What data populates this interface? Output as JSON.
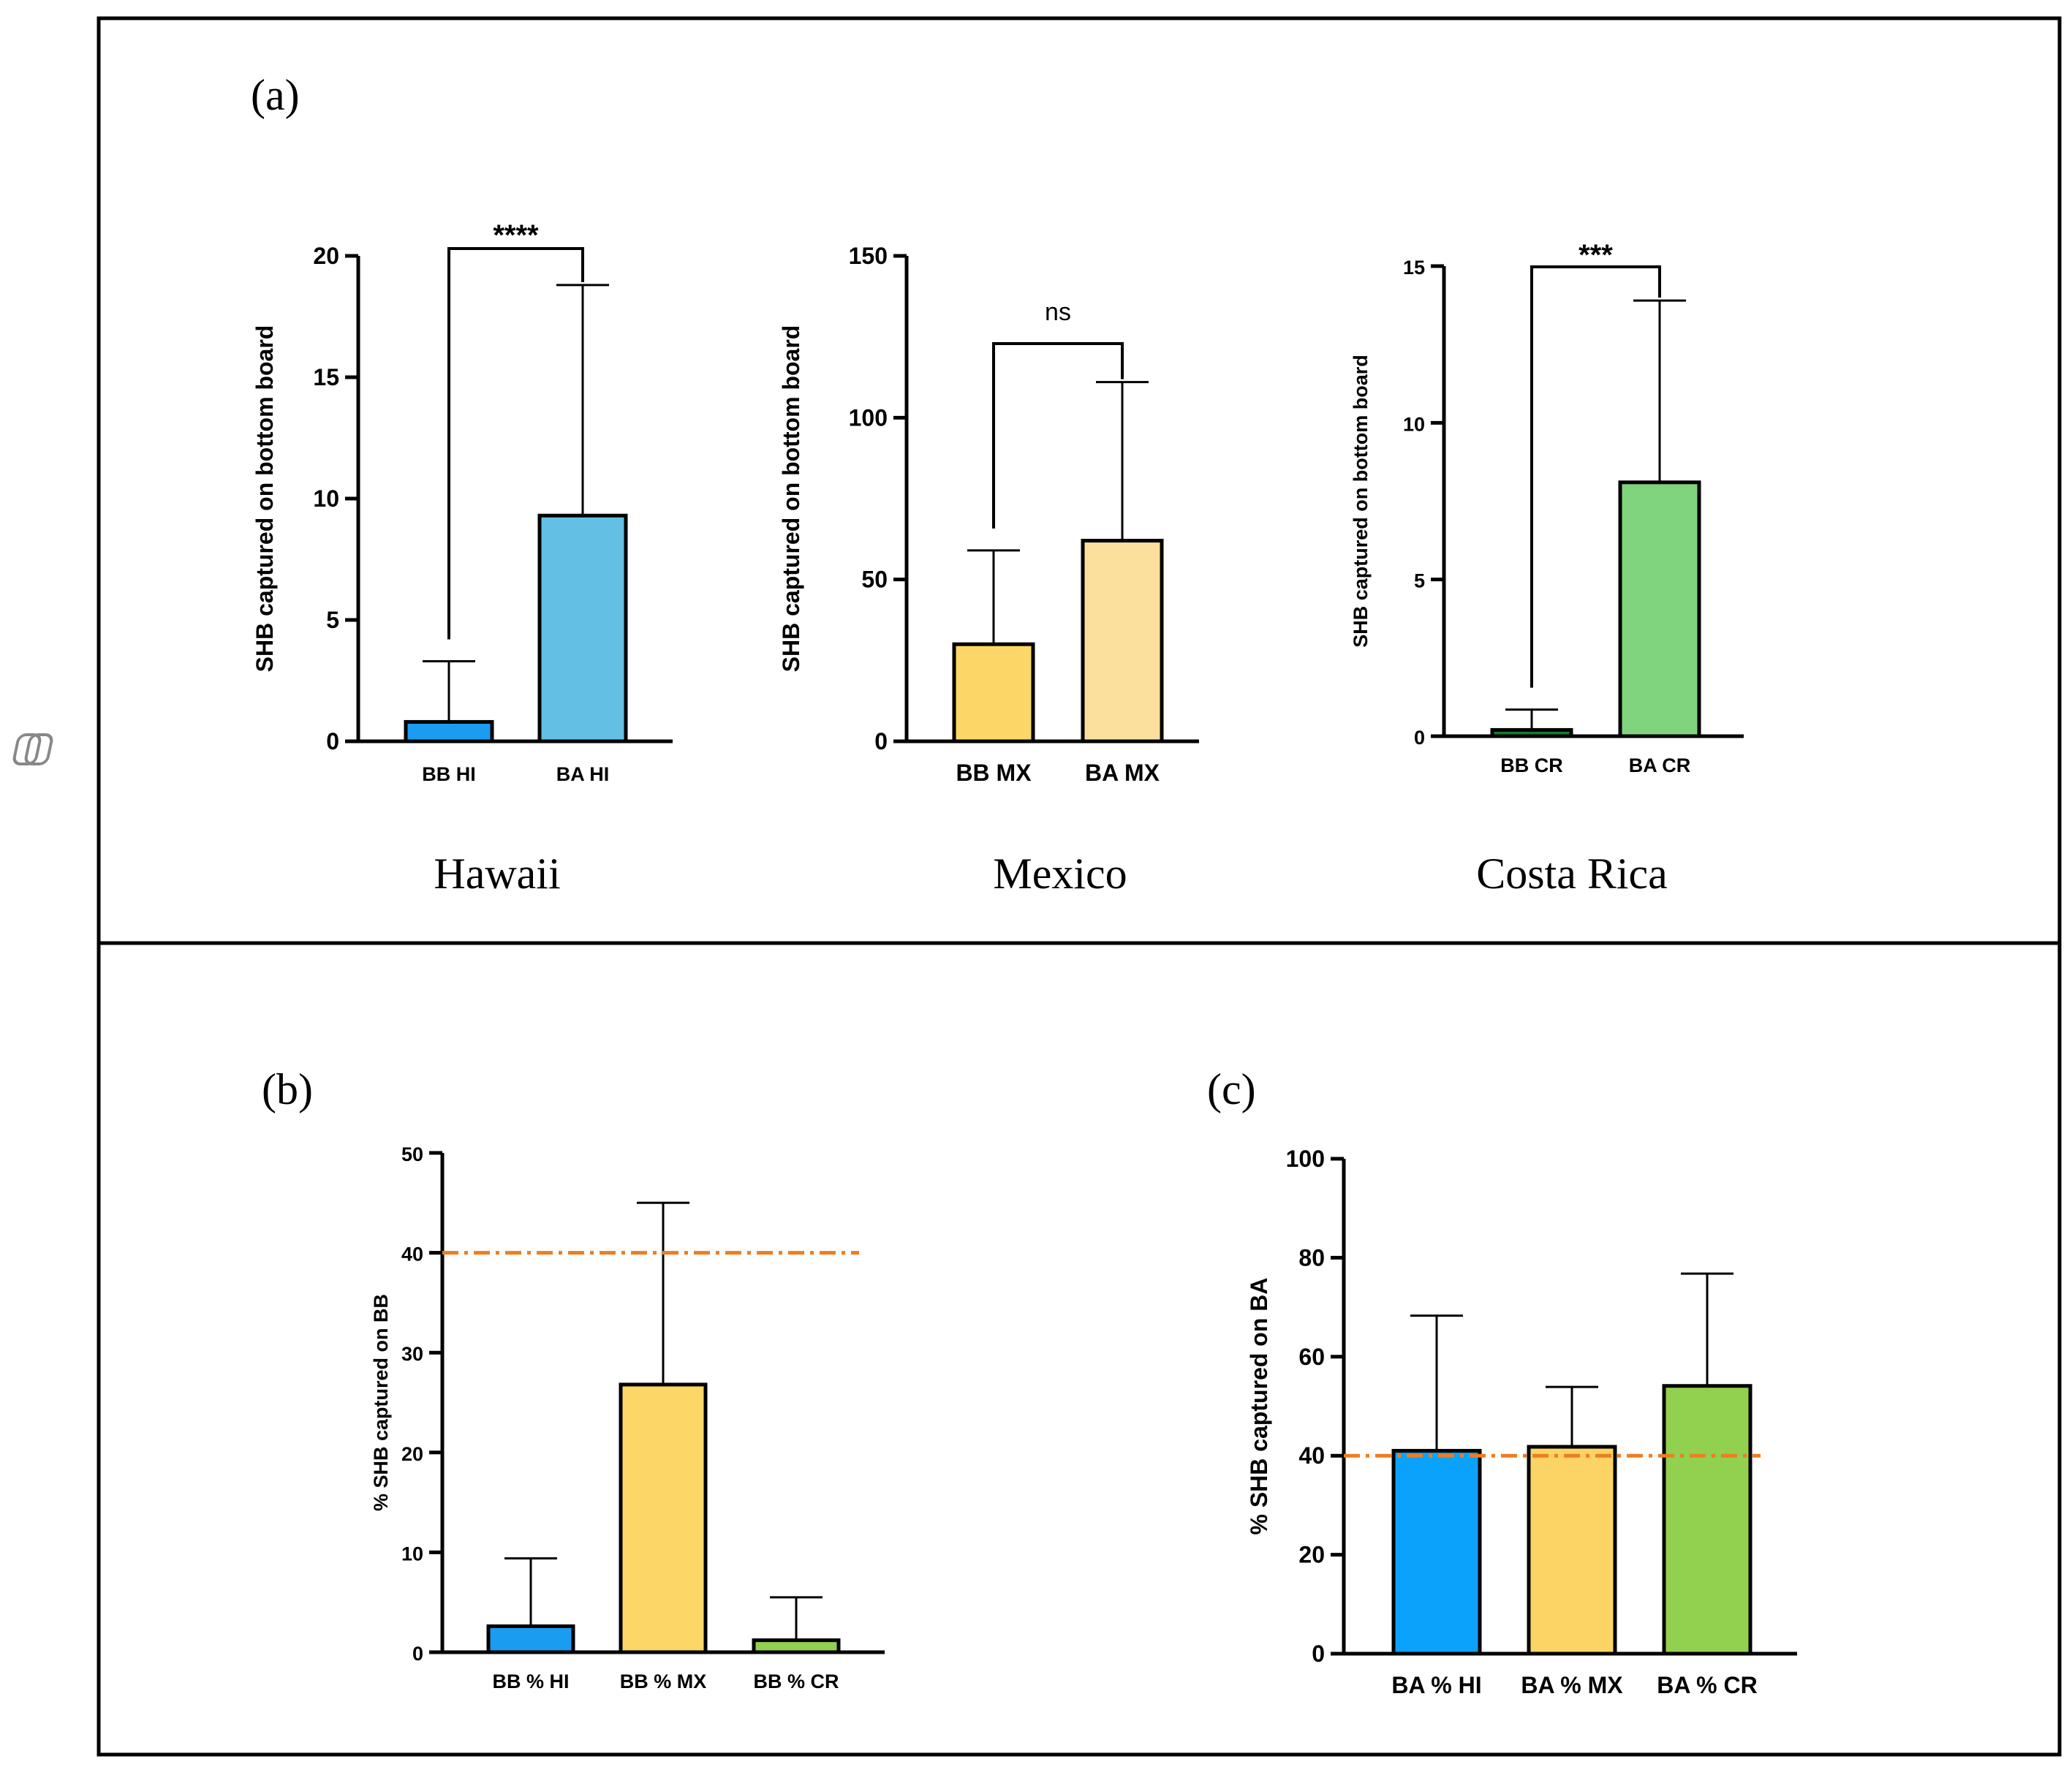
{
  "figure": {
    "panel_a_label": "(a)",
    "panel_b_label": "(b)",
    "panel_c_label": "(c)",
    "side_icon": "copilot-icon"
  },
  "colors": {
    "blue_dark": "#1a9cf0",
    "blue_light": "#63c0e4",
    "yellow_dark": "#fcd768",
    "yellow_light": "#fae09c",
    "green_dark": "#177a2c",
    "green_light": "#80d47e",
    "yellow_c": "#fcd466",
    "blue_c": "#0aa2fb",
    "green_c": "#92d050",
    "reference_line": "#f07d1f"
  },
  "chart_data": [
    {
      "id": "hawaii",
      "type": "bar",
      "region": "Hawaii",
      "categories": [
        "BB HI",
        "BA HI"
      ],
      "values": [
        0.8,
        9.3
      ],
      "error_upper": [
        3.3,
        18.8
      ],
      "colors": [
        "#1a9cf0",
        "#63c0e4"
      ],
      "ylabel": "SHB captured on bottom board",
      "ylim": [
        0,
        20
      ],
      "yticks": [
        0,
        5,
        10,
        15,
        20
      ],
      "significance": "****"
    },
    {
      "id": "mexico",
      "type": "bar",
      "region": "Mexico",
      "categories": [
        "BB MX",
        "BA MX"
      ],
      "values": [
        30,
        62
      ],
      "error_upper": [
        59,
        111
      ],
      "colors": [
        "#fcd768",
        "#fae09c"
      ],
      "ylabel": "SHB captured on bottom board",
      "ylim": [
        0,
        150
      ],
      "yticks": [
        0,
        50,
        100,
        150
      ],
      "significance": "ns"
    },
    {
      "id": "costa_rica",
      "type": "bar",
      "region": "Costa Rica",
      "categories": [
        "BB CR",
        "BA CR"
      ],
      "values": [
        0.2,
        8.1
      ],
      "error_upper": [
        0.85,
        13.9
      ],
      "colors": [
        "#177a2c",
        "#80d47e"
      ],
      "ylabel": "SHB captured on bottom board",
      "ylim": [
        0,
        15
      ],
      "yticks": [
        0,
        5,
        10,
        15
      ],
      "significance": "***"
    },
    {
      "id": "panel_b",
      "type": "bar",
      "categories": [
        "BB % HI",
        "BB % MX",
        "BB % CR"
      ],
      "values": [
        2.6,
        26.8,
        1.2
      ],
      "error_upper": [
        9.4,
        45,
        5.5
      ],
      "colors": [
        "#1a9cf0",
        "#fcd768",
        "#92d050"
      ],
      "ylabel": "% SHB captured on BB",
      "ylim": [
        0,
        50
      ],
      "yticks": [
        0,
        10,
        20,
        30,
        40,
        50
      ],
      "reference_line": 40
    },
    {
      "id": "panel_c",
      "type": "bar",
      "categories": [
        "BA % HI",
        "BA % MX",
        "BA % CR"
      ],
      "values": [
        41,
        41.8,
        54.1
      ],
      "error_upper": [
        68.3,
        53.9,
        76.8
      ],
      "colors": [
        "#0aa2fb",
        "#fcd466",
        "#92d050"
      ],
      "ylabel": "% SHB captured on BA",
      "ylim": [
        0,
        100
      ],
      "yticks": [
        0,
        20,
        40,
        60,
        80,
        100
      ],
      "reference_line": 40
    }
  ]
}
